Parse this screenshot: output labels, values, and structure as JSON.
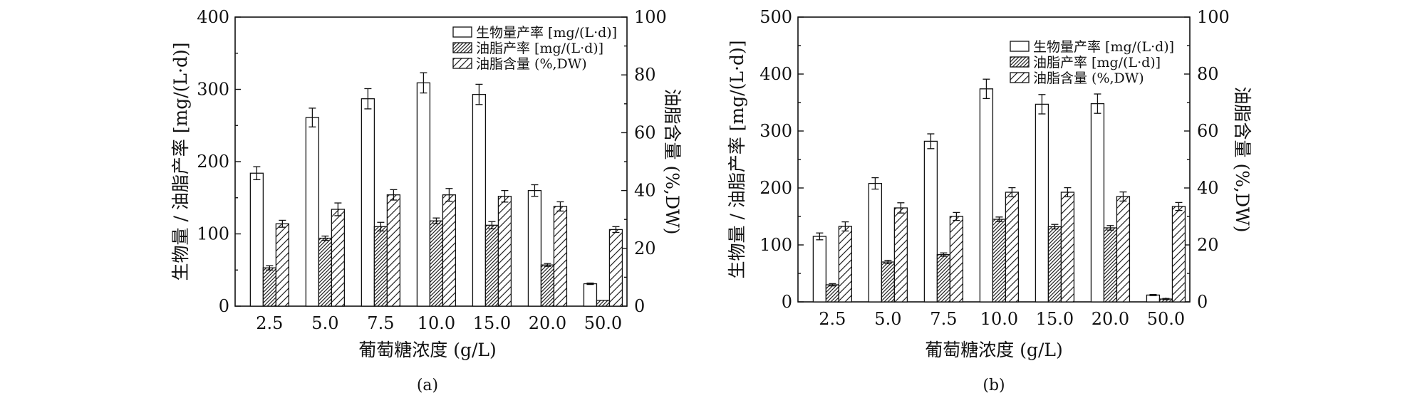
{
  "chart_data": [
    {
      "type": "bar",
      "panel_label": "(a)",
      "xlabel": "葡萄糖浓度 (g/L)",
      "ylabel": "生物量 / 油脂产率 [mg/(L·d)]",
      "y2label": "油脂含量 (%,DW)",
      "categories": [
        "2.5",
        "5.0",
        "7.5",
        "10.0",
        "15.0",
        "20.0",
        "50.0"
      ],
      "ylim": [
        0,
        400
      ],
      "y_ticks": [
        0,
        100,
        200,
        300,
        400
      ],
      "y2lim": [
        0,
        100
      ],
      "y2_ticks": [
        0,
        20,
        40,
        60,
        80,
        100
      ],
      "legend_position": "top-right",
      "series": [
        {
          "name": "生物量产率 [mg/(L·d)]",
          "axis": "left",
          "pattern": "none",
          "values": [
            184,
            261,
            287,
            309,
            293,
            160,
            31
          ],
          "errors": [
            9,
            13,
            14,
            14,
            14,
            8,
            1
          ]
        },
        {
          "name": "油脂产率 [mg/(L·d)]",
          "axis": "left",
          "pattern": "dense-hatch",
          "values": [
            53,
            94,
            110,
            118,
            112,
            57,
            8
          ],
          "errors": [
            3,
            3,
            6,
            4,
            5,
            2,
            0
          ]
        },
        {
          "name": "油脂含量 (%,DW)",
          "axis": "right",
          "pattern": "sparse-hatch",
          "values": [
            28.5,
            33.5,
            38.5,
            38.5,
            38.0,
            34.5,
            26.5
          ],
          "errors": [
            1.2,
            2.2,
            1.8,
            2.2,
            2.0,
            1.6,
            1.0
          ]
        }
      ]
    },
    {
      "type": "bar",
      "panel_label": "(b)",
      "xlabel": "葡萄糖浓度 (g/L)",
      "ylabel": "生物量 / 油脂产率 [mg/(L·d)]",
      "y2label": "油脂含量 (%,DW)",
      "categories": [
        "2.5",
        "5.0",
        "7.5",
        "10.0",
        "15.0",
        "20.0",
        "50.0"
      ],
      "ylim": [
        0,
        500
      ],
      "y_ticks": [
        0,
        100,
        200,
        300,
        400,
        500
      ],
      "y2lim": [
        0,
        100
      ],
      "y2_ticks": [
        0,
        20,
        40,
        60,
        80,
        100
      ],
      "legend_position": "top-right",
      "series": [
        {
          "name": "生物量产率 [mg/(L·d)]",
          "axis": "left",
          "pattern": "none",
          "values": [
            115,
            208,
            282,
            374,
            347,
            348,
            12
          ],
          "errors": [
            6,
            10,
            13,
            17,
            17,
            17,
            1
          ]
        },
        {
          "name": "油脂产率 [mg/(L·d)]",
          "axis": "left",
          "pattern": "dense-hatch",
          "values": [
            30,
            70,
            83,
            145,
            132,
            130,
            5
          ],
          "errors": [
            2,
            3,
            3,
            4,
            4,
            4,
            1
          ]
        },
        {
          "name": "油脂含量 (%,DW)",
          "axis": "right",
          "pattern": "sparse-hatch",
          "values": [
            26.5,
            33.0,
            30.0,
            38.5,
            38.5,
            37.0,
            33.5
          ],
          "errors": [
            1.6,
            1.8,
            1.4,
            1.6,
            1.6,
            1.6,
            1.4
          ]
        }
      ]
    }
  ]
}
